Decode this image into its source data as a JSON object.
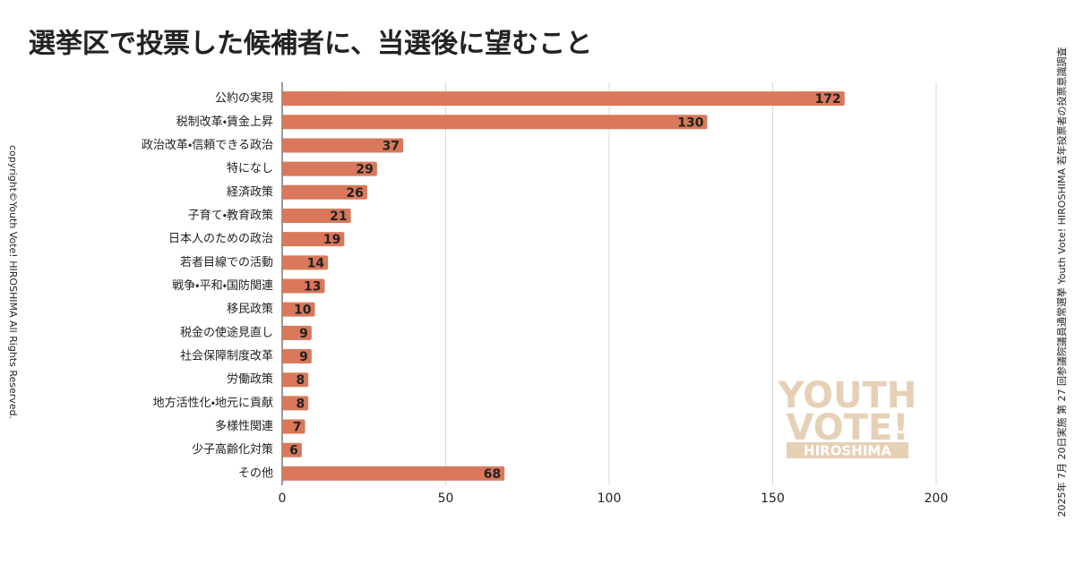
{
  "chart_data": {
    "type": "bar",
    "orientation": "horizontal",
    "title": "選挙区で投票した候補者に、当選後に望むこと",
    "categories": [
      "公約の実現",
      "税制改革・賃金上昇",
      "政治改革・信頼できる政治",
      "特になし",
      "経済政策",
      "子育て・教育政策",
      "日本人のための政治",
      "若者目線での活動",
      "戦争・平和・国防関連",
      "移民政策",
      "税金の使途見直し",
      "社会保障制度改革",
      "労働政策",
      "地方活性化・地元に貢献",
      "多様性関連",
      "少子高齢化対策",
      "その他"
    ],
    "values": [
      172,
      130,
      37,
      29,
      26,
      21,
      19,
      14,
      13,
      10,
      9,
      9,
      8,
      8,
      7,
      6,
      68
    ],
    "color": "#d9785a",
    "xlim": [
      0,
      200
    ],
    "xticks": [
      0,
      50,
      100,
      150,
      200
    ],
    "grid": true,
    "copyright": "copyright©Youth Vote! HIROSHIMA  All Rights Reserved.",
    "source_note": "2025年 7月 20日実施 第 27 回参議院議員通常選挙  Youth Vote! HIROSHIMA 若年投票者の投票意識調査",
    "logo": {
      "lines": [
        "YOUTH",
        "VOTE!"
      ],
      "sub": "HIROSHIMA"
    }
  }
}
